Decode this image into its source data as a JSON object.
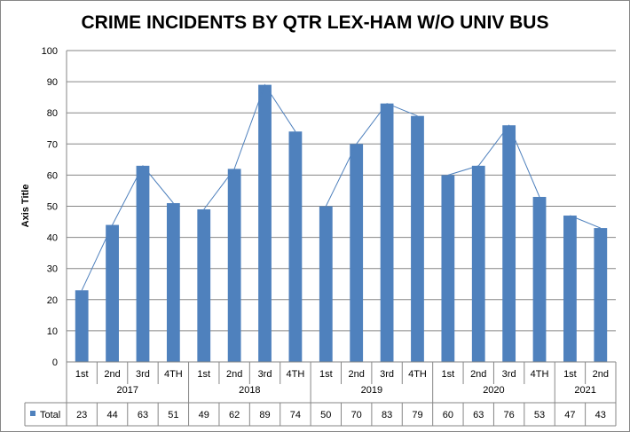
{
  "chart_data": {
    "type": "bar",
    "title": "CRIME INCIDENTS BY QTR LEX-HAM W/O UNIV BUS",
    "ylabel": "Axis Title",
    "ylim": [
      0,
      100
    ],
    "ytick_step": 10,
    "grid": true,
    "legend_position": "data-table",
    "groups": [
      {
        "year": "2017",
        "quarters": [
          "1st",
          "2nd",
          "3rd",
          "4TH"
        ]
      },
      {
        "year": "2018",
        "quarters": [
          "1st",
          "2nd",
          "3rd",
          "4TH"
        ]
      },
      {
        "year": "2019",
        "quarters": [
          "1st",
          "2nd",
          "3rd",
          "4TH"
        ]
      },
      {
        "year": "2020",
        "quarters": [
          "1st",
          "2nd",
          "3rd",
          "4TH"
        ]
      },
      {
        "year": "2021",
        "quarters": [
          "1st",
          "2nd"
        ]
      }
    ],
    "series": [
      {
        "name": "Total",
        "color": "#4f81bd",
        "values": [
          23,
          44,
          63,
          51,
          49,
          62,
          89,
          74,
          50,
          70,
          83,
          79,
          60,
          63,
          76,
          53,
          47,
          43
        ]
      }
    ],
    "trendline_segments": [
      [
        0,
        3
      ],
      [
        4,
        7
      ],
      [
        8,
        11
      ],
      [
        12,
        15
      ],
      [
        16,
        17
      ]
    ],
    "trendline_color": "#4f81bd"
  }
}
